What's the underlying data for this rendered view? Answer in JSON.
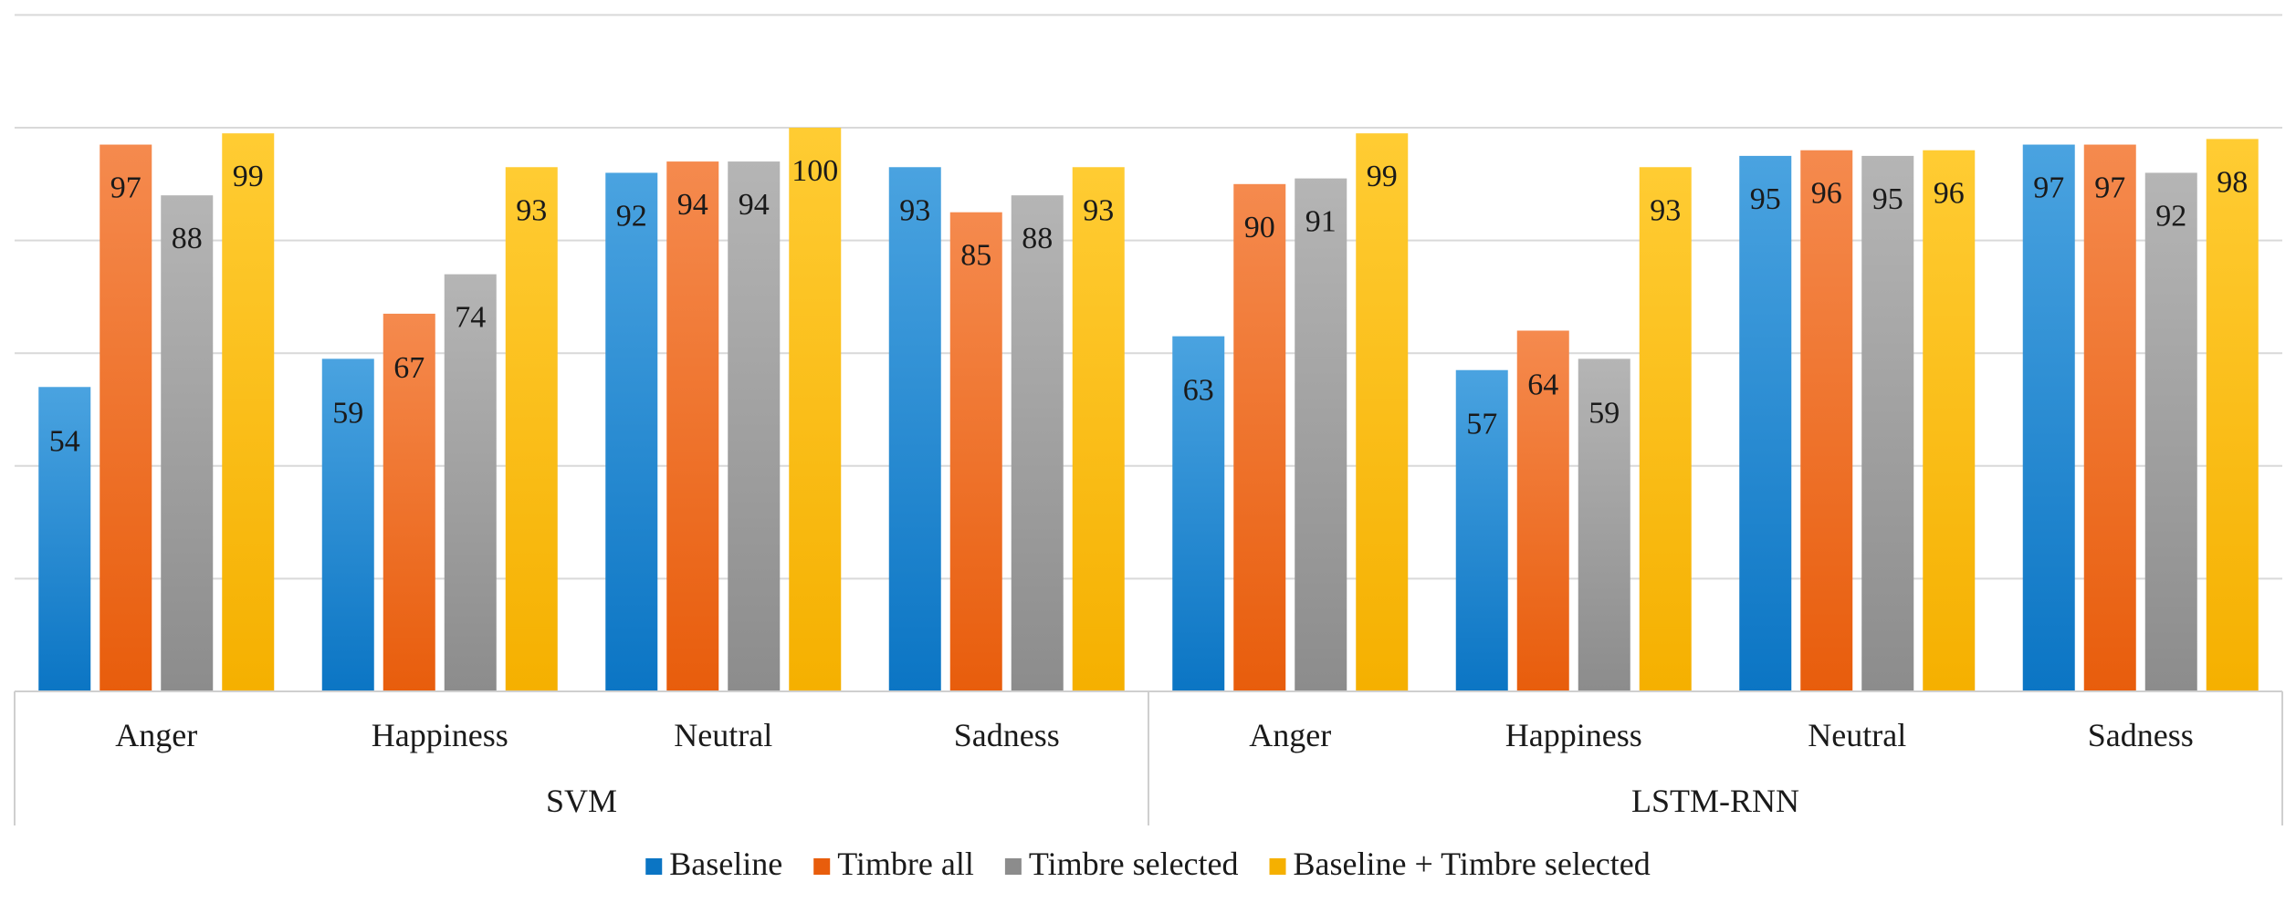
{
  "chart_data": {
    "type": "bar",
    "title": "",
    "xlabel": "",
    "ylabel": "",
    "ylim": [
      0,
      100
    ],
    "grid": true,
    "legend_position": "bottom",
    "groups": [
      {
        "name": "SVM",
        "categories": [
          "Anger",
          "Happiness",
          "Neutral",
          "Sadness"
        ]
      },
      {
        "name": "LSTM-RNN",
        "categories": [
          "Anger",
          "Happiness",
          "Neutral",
          "Sadness"
        ]
      }
    ],
    "categories": [
      "Anger",
      "Happiness",
      "Neutral",
      "Sadness",
      "Anger",
      "Happiness",
      "Neutral",
      "Sadness"
    ],
    "series": [
      {
        "name": "Baseline",
        "color_top": "#4aa3e0",
        "color_bottom": "#0b75c4",
        "values": [
          54,
          59,
          92,
          93,
          63,
          57,
          95,
          97
        ]
      },
      {
        "name": "Timbre all",
        "color_top": "#f58a4e",
        "color_bottom": "#e85d0c",
        "values": [
          97,
          67,
          94,
          85,
          90,
          64,
          96,
          97
        ]
      },
      {
        "name": "Timbre selected",
        "color_top": "#b5b5b5",
        "color_bottom": "#8c8c8c",
        "values": [
          88,
          74,
          94,
          88,
          91,
          59,
          95,
          92
        ]
      },
      {
        "name": "Baseline + Timbre selected",
        "color_top": "#ffcc33",
        "color_bottom": "#f5b000",
        "values": [
          99,
          93,
          100,
          93,
          99,
          93,
          96,
          98
        ]
      }
    ]
  }
}
